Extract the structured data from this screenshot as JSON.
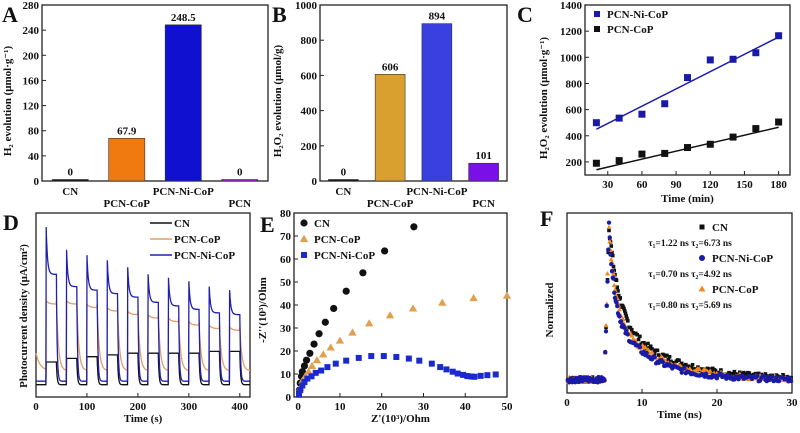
{
  "chart_data": [
    {
      "panel": "A",
      "type": "bar",
      "ylabel": "H₂ evolution (μmol·g⁻¹)",
      "categories": [
        "CN",
        "PCN-CoP",
        "PCN-Ni-CoP",
        "PCN"
      ],
      "values": [
        0,
        67.9,
        248.5,
        0
      ],
      "value_labels": [
        "0",
        "67.9",
        "248.5",
        "0"
      ],
      "colors": [
        "#111111",
        "#f07a10",
        "#1010d0",
        "#9a20e0"
      ],
      "ylim": [
        0,
        280
      ],
      "yticks": [
        0,
        40,
        80,
        120,
        160,
        200,
        240,
        280
      ]
    },
    {
      "panel": "B",
      "type": "bar",
      "ylabel": "H₂O₂ evolution (μmol/g)",
      "categories": [
        "CN",
        "PCN-CoP",
        "PCN-Ni-CoP",
        "PCN"
      ],
      "values": [
        0,
        606,
        894,
        101
      ],
      "value_labels": [
        "0",
        "606",
        "894",
        "101"
      ],
      "colors": [
        "#111111",
        "#d9a030",
        "#3a40e0",
        "#7a10e8"
      ],
      "ylim": [
        0,
        1000
      ],
      "yticks": [
        0,
        200,
        400,
        600,
        800,
        1000
      ]
    },
    {
      "panel": "C",
      "type": "scatter",
      "xlabel": "Time (min)",
      "ylabel": "H₂O₂ evolution (μmol·g⁻¹)",
      "xlim": [
        10,
        190
      ],
      "ylim": [
        100,
        1400
      ],
      "xticks": [
        30,
        60,
        90,
        120,
        150,
        180
      ],
      "yticks": [
        200,
        400,
        600,
        800,
        1000,
        1200,
        1400
      ],
      "legend": "top-left",
      "series": [
        {
          "name": "PCN-Ni-CoP",
          "color": "#1a1aa8",
          "x": [
            20,
            40,
            60,
            80,
            100,
            120,
            140,
            160,
            180
          ],
          "y": [
            500,
            535,
            565,
            645,
            845,
            980,
            985,
            1035,
            1165
          ],
          "fit": [
            [
              20,
              450
            ],
            [
              180,
              1155
            ]
          ]
        },
        {
          "name": "PCN-CoP",
          "color": "#111111",
          "x": [
            20,
            40,
            60,
            80,
            100,
            120,
            140,
            160,
            180
          ],
          "y": [
            190,
            210,
            260,
            265,
            310,
            335,
            390,
            455,
            505
          ],
          "fit": [
            [
              20,
              140
            ],
            [
              180,
              465
            ]
          ]
        }
      ]
    },
    {
      "panel": "D",
      "type": "line",
      "xlabel": "Time (s)",
      "ylabel": "Photocurrent density (μA/cm²)",
      "xlim": [
        0,
        420
      ],
      "ylim": [
        -0.05,
        1
      ],
      "xticks": [
        0,
        100,
        200,
        300,
        400
      ],
      "legend": "top-right",
      "light_on_times": [
        20,
        60,
        100,
        140,
        180,
        220,
        260,
        300,
        340,
        380
      ],
      "light_on_duration": 20,
      "series": [
        {
          "name": "CN",
          "color": "#111111",
          "dark": 0.02,
          "on": [
            0.15,
            0.17,
            0.18,
            0.19,
            0.2,
            0.2,
            0.2,
            0.2,
            0.21,
            0.21
          ]
        },
        {
          "name": "PCN-CoP",
          "color": "#e0a060",
          "dark": 0.1,
          "on": [
            0.5,
            0.5,
            0.48,
            0.46,
            0.44,
            0.42,
            0.4,
            0.38,
            0.36,
            0.35
          ]
        },
        {
          "name": "PCN-Ni-CoP",
          "color": "#2020b0",
          "dark": 0.04,
          "peak": [
            0.92,
            0.79,
            0.76,
            0.73,
            0.69,
            0.65,
            0.63,
            0.61,
            0.58,
            0.56
          ],
          "on": [
            0.65,
            0.58,
            0.56,
            0.54,
            0.52,
            0.49,
            0.47,
            0.45,
            0.43,
            0.42
          ]
        }
      ]
    },
    {
      "panel": "E",
      "type": "scatter",
      "xlabel": "Z'(10³)/Ohm",
      "ylabel": "-Z''(10³)/Ohm",
      "xlim": [
        -1,
        50
      ],
      "ylim": [
        0,
        80
      ],
      "xticks": [
        0,
        10,
        20,
        30,
        40,
        50
      ],
      "yticks": [
        0,
        10,
        20,
        30,
        40,
        50,
        60,
        70,
        80
      ],
      "legend": "top-left",
      "series": [
        {
          "name": "CN",
          "color": "#111111",
          "marker": "circle",
          "x": [
            0.3,
            0.5,
            0.8,
            1,
            1.5,
            2,
            2.8,
            3.8,
            5,
            6.5,
            8.5,
            11.5,
            15.5,
            20.7,
            27.7
          ],
          "y": [
            3,
            6,
            9,
            11,
            13.5,
            16,
            19,
            23,
            27.5,
            32.5,
            38.5,
            46,
            54,
            63.5,
            74
          ]
        },
        {
          "name": "PCN-CoP",
          "color": "#e0a050",
          "marker": "triangle",
          "x": [
            0.5,
            1,
            1.7,
            2.5,
            3.3,
            4.5,
            6,
            7.8,
            10,
            13,
            17,
            22,
            27.5,
            34.5,
            42,
            50
          ],
          "y": [
            4,
            7,
            9,
            11,
            13.5,
            16,
            18.5,
            21.5,
            24.5,
            28,
            32,
            35.5,
            38.5,
            41,
            43,
            44
          ]
        },
        {
          "name": "PCN-Ni-CoP",
          "color": "#1a2ad0",
          "marker": "square",
          "x": [
            0.2,
            0.5,
            1,
            1.5,
            2.2,
            3.2,
            4.2,
            5.5,
            7,
            9,
            11.5,
            14.5,
            17.5,
            20.5,
            23.5,
            26.5,
            29,
            32,
            34,
            35.5,
            37,
            38.2,
            39.5,
            40.5,
            41.5,
            42.2,
            43.7,
            45.3,
            47.3
          ],
          "y": [
            1,
            3,
            5,
            6.5,
            8,
            9,
            10.5,
            11.5,
            13,
            14.5,
            15.8,
            17,
            17.8,
            17.8,
            17.4,
            16.7,
            15.8,
            14.5,
            13,
            12,
            11,
            10.2,
            9.6,
            9.1,
            8.9,
            8.8,
            9.2,
            9.5,
            9.8
          ]
        }
      ]
    },
    {
      "panel": "F",
      "type": "scatter",
      "xlabel": "Time (ns)",
      "ylabel": "Normalized",
      "xlim": [
        0,
        30
      ],
      "xticks": [
        0,
        10,
        20,
        30
      ],
      "legend": "top-right",
      "series": [
        {
          "name": "CN",
          "color": "#111111",
          "marker": "square",
          "tau_text": "τ₁=1.22 ns τ₂=6.73 ns",
          "tau1": 1.22,
          "tau2": 6.73
        },
        {
          "name": "PCN-Ni-CoP",
          "color": "#1a1aa8",
          "marker": "circle",
          "tau_text": "τ₁=0.70 ns τ₂=4.92 ns",
          "tau1": 0.7,
          "tau2": 4.92
        },
        {
          "name": "PCN-CoP",
          "color": "#f08a20",
          "marker": "triangle",
          "tau_text": "τ₁=0.80 ns τ₂=5.69 ns",
          "tau1": 0.8,
          "tau2": 5.69
        }
      ]
    }
  ]
}
